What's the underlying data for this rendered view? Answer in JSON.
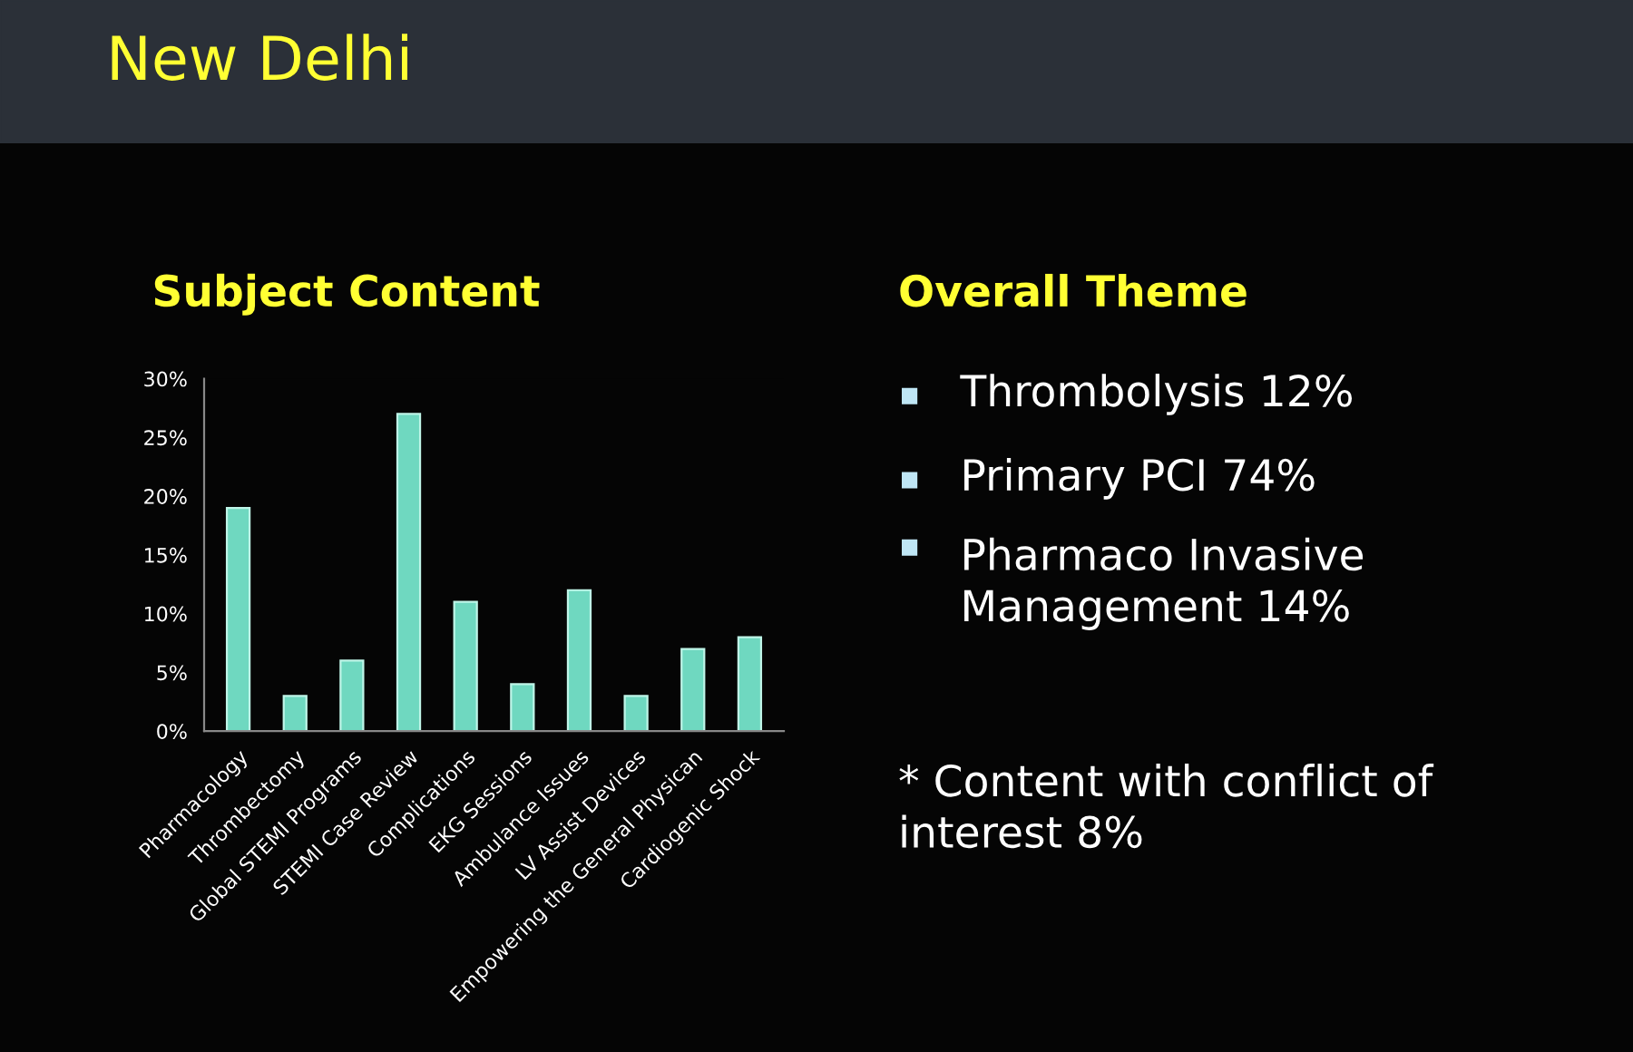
{
  "chart_data": {
    "type": "bar",
    "title": "New Delhi",
    "subtitle": "Subject Content",
    "categories": [
      "Pharmacology",
      "Thrombectomy",
      "Global STEMI Programs",
      "STEMI Case Review",
      "Complications",
      "EKG Sessions",
      "Ambulance Issues",
      "LV Assist Devices",
      "Empowering the General Physican",
      "Cardiogenic Shock"
    ],
    "values": [
      19,
      3,
      6,
      27,
      11,
      4,
      12,
      3,
      7,
      8
    ],
    "color": "#6fd8c0",
    "ylim": [
      0,
      30
    ],
    "yticks": [
      {
        "value": 0,
        "label": "0%"
      },
      {
        "value": 5,
        "label": "5%"
      },
      {
        "value": 10,
        "label": "10%"
      },
      {
        "value": 15,
        "label": "15%"
      },
      {
        "value": 20,
        "label": "20%"
      },
      {
        "value": 25,
        "label": "25%"
      },
      {
        "value": 30,
        "label": "30%"
      }
    ],
    "grid": false,
    "annotations": [
      "Overall Theme",
      "Thrombolysis 12%",
      "Primary PCI 74%",
      "Pharmaco Invasive\nManagement 14%",
      "* Content with conflict of\ninterest 8%"
    ]
  }
}
